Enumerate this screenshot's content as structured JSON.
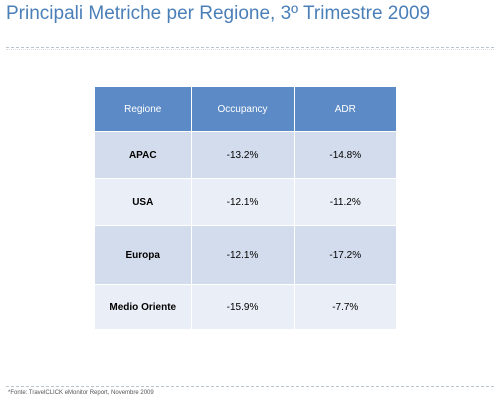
{
  "title": "Principali Metriche per Regione, 3º Trimestre 2009",
  "table": {
    "headers": [
      "Regione",
      "Occupancy",
      "ADR"
    ],
    "rows": [
      {
        "region": "APAC",
        "occupancy": "-13.2%",
        "adr": "-14.8%"
      },
      {
        "region": "USA",
        "occupancy": "-12.1%",
        "adr": "-11.2%"
      },
      {
        "region": "Europa",
        "occupancy": "-12.1%",
        "adr": "-17.2%"
      },
      {
        "region": "Medio Oriente",
        "occupancy": "-15.9%",
        "adr": "-7.7%"
      }
    ]
  },
  "footnote": "*Fonte: TravelCLICK eMonitor Report, Novembre 2009",
  "colors": {
    "title": "#4a7fb8",
    "header_bg": "#5b8ac6",
    "row_dark": "#d3dcec",
    "row_light": "#eaeef6"
  }
}
